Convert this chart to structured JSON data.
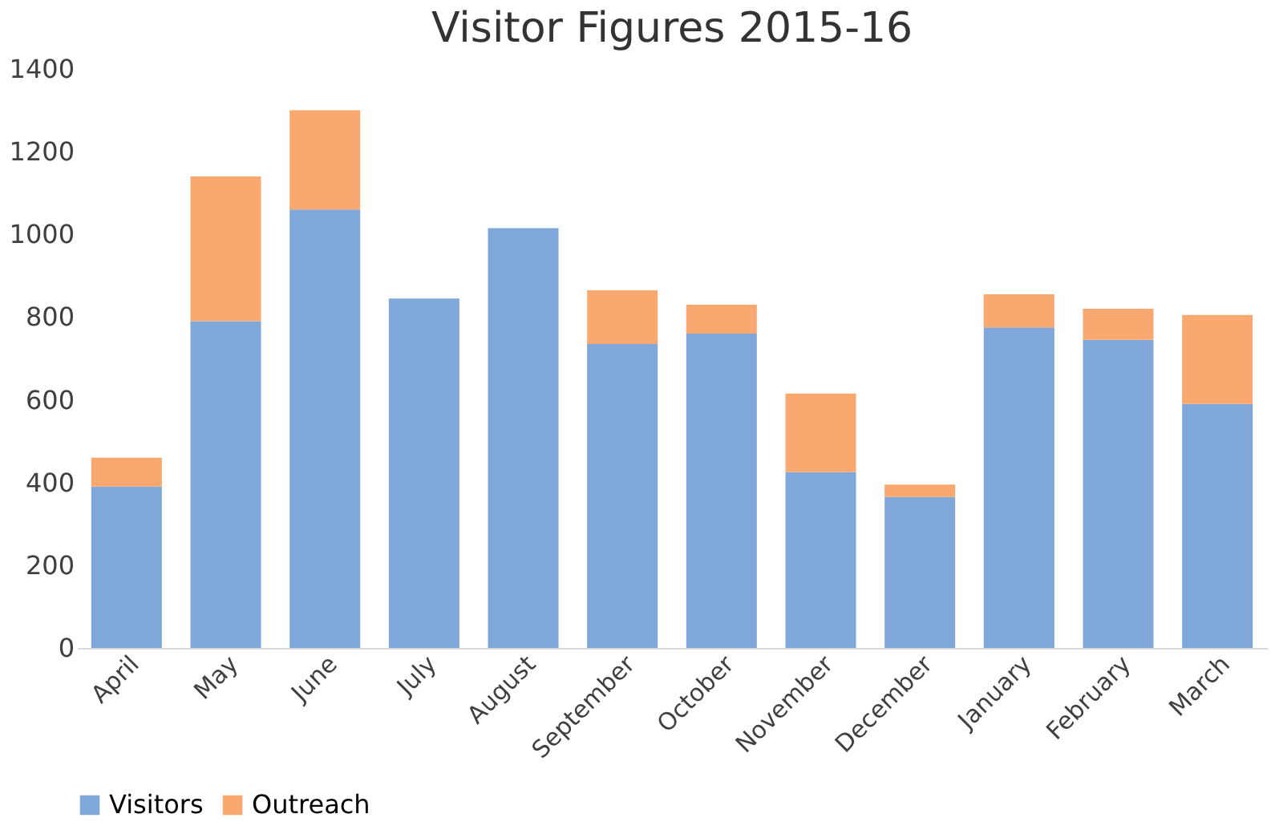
{
  "chart_data": {
    "type": "bar",
    "title": "Visitor Figures 2015-16",
    "stacked": true,
    "legend": "bottom",
    "grid": false,
    "categories": [
      "April",
      "May",
      "June",
      "July",
      "August",
      "September",
      "October",
      "November",
      "December",
      "January",
      "February",
      "March"
    ],
    "series": [
      {
        "name": "Visitors",
        "color": "#7fa7d9",
        "values": [
          390,
          790,
          1060,
          845,
          1015,
          735,
          760,
          425,
          365,
          775,
          745,
          590
        ]
      },
      {
        "name": "Outreach",
        "color": "#f9a86f",
        "values": [
          70,
          350,
          240,
          null,
          null,
          130,
          70,
          190,
          30,
          80,
          75,
          215
        ]
      }
    ],
    "ylim": [
      0,
      1400
    ],
    "yticks": [
      0,
      200,
      400,
      600,
      800,
      1000,
      1200,
      1400
    ]
  }
}
